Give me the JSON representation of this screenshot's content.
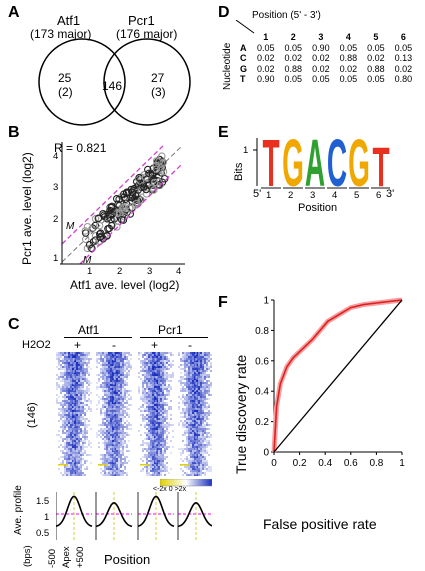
{
  "panels": {
    "A": "A",
    "B": "B",
    "C": "C",
    "D": "D",
    "E": "E",
    "F": "F"
  },
  "venn": {
    "left": {
      "name": "Atf1",
      "count": "(173 major)",
      "unique": "25",
      "unique_sub": "(2)"
    },
    "right": {
      "name": "Pcr1",
      "count": "(176 major)",
      "unique": "27",
      "unique_sub": "(3)"
    },
    "overlap": "146"
  },
  "scatter": {
    "r_label": "R = 0.821",
    "xlabel": "Atf1 ave. level (log2)",
    "ylabel": "Pcr1 ave. level (log2)",
    "x_ticks": [
      "1",
      "2",
      "3",
      "4"
    ],
    "y_ticks": [
      "1",
      "2",
      "3",
      "4"
    ],
    "m_label_y": "M",
    "m_label_x": "M"
  },
  "heatmap": {
    "groups": [
      "Atf1",
      "Pcr1"
    ],
    "h2o2_label": "H2O2",
    "conditions": [
      "+",
      "-",
      "+",
      "-"
    ],
    "n_label": "(146)",
    "legend": "<-2x 0 >2x",
    "profile_ylabel": "Ave. profile",
    "profile_ticks": [
      "1.5",
      "1",
      "0.5"
    ],
    "x_unit": "(bps)",
    "x_ticks": [
      "-500",
      "Apex",
      "+500"
    ],
    "xlabel": "Position",
    "colors": {
      "high": "#1a2fbf",
      "low": "#ffffff",
      "accent": "#e0d000",
      "line": "#ff00ff"
    }
  },
  "motif_table": {
    "header": "Position (5' - 3')",
    "row_label": "Nucleotide",
    "positions": [
      "1",
      "2",
      "3",
      "4",
      "5",
      "6"
    ],
    "rows": [
      {
        "nt": "A",
        "vals": [
          "0.05",
          "0.05",
          "0.90",
          "0.05",
          "0.05",
          "0.05"
        ]
      },
      {
        "nt": "C",
        "vals": [
          "0.02",
          "0.02",
          "0.02",
          "0.88",
          "0.02",
          "0.13"
        ]
      },
      {
        "nt": "G",
        "vals": [
          "0.02",
          "0.88",
          "0.02",
          "0.02",
          "0.88",
          "0.02"
        ]
      },
      {
        "nt": "T",
        "vals": [
          "0.90",
          "0.05",
          "0.05",
          "0.05",
          "0.05",
          "0.80"
        ]
      }
    ]
  },
  "logo": {
    "ylabel": "Bits",
    "y_ticks": [
      "1",
      "0"
    ],
    "letters": [
      "T",
      "G",
      "A",
      "C",
      "G",
      "T"
    ],
    "letter_colors": {
      "T": "#e83020",
      "G": "#f0a800",
      "A": "#30a030",
      "C": "#2060d0"
    },
    "x_ticks": [
      "1",
      "2",
      "3",
      "4",
      "5",
      "6"
    ],
    "five_prime": "5'",
    "three_prime": "3'",
    "xlabel": "Position"
  },
  "chart_data": [
    {
      "type": "line",
      "title": "",
      "xlabel": "False positive rate",
      "ylabel": "True discovery rate",
      "xlim": [
        0,
        1
      ],
      "ylim": [
        0,
        1
      ],
      "x_ticks": [
        "0",
        "0.2",
        "0.4",
        "0.6",
        "0.8",
        "1"
      ],
      "y_ticks": [
        "0",
        "0.2",
        "0.4",
        "0.6",
        "0.8",
        "1"
      ],
      "series": [
        {
          "color": "#e02020",
          "x": [
            0,
            0.02,
            0.05,
            0.1,
            0.15,
            0.2,
            0.3,
            0.42,
            0.5,
            0.6,
            0.7,
            0.8,
            0.9,
            1.0
          ],
          "y": [
            0,
            0.3,
            0.45,
            0.56,
            0.62,
            0.66,
            0.74,
            0.86,
            0.9,
            0.95,
            0.97,
            0.98,
            0.99,
            1.0
          ]
        },
        {
          "color": "#000000",
          "x": [
            0,
            1
          ],
          "y": [
            0,
            1
          ]
        }
      ]
    }
  ]
}
